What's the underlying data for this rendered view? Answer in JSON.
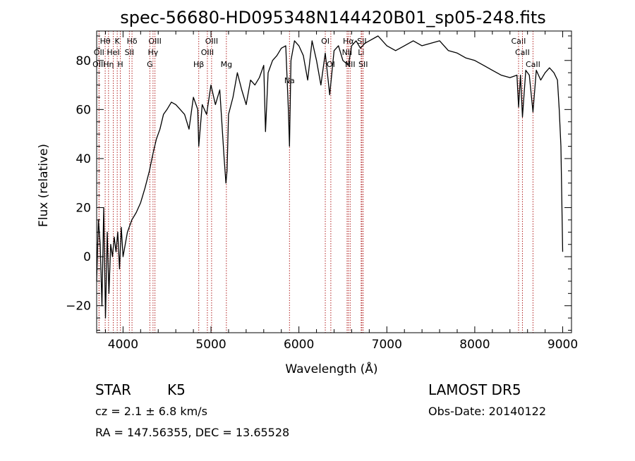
{
  "chart_data": {
    "type": "line",
    "title": "spec-56680-HD095348N144420B01_sp05-248.fits",
    "xlabel": "Wavelength (Å)",
    "ylabel": "Flux (relative)",
    "xlim": [
      3700,
      9100
    ],
    "ylim": [
      -31,
      92
    ],
    "x_ticks": [
      4000,
      5000,
      6000,
      7000,
      8000,
      9000
    ],
    "y_ticks": [
      -20,
      0,
      20,
      40,
      60,
      80
    ],
    "grid": false,
    "series": [
      {
        "color": "#000000",
        "x": [
          3700,
          3720,
          3740,
          3760,
          3780,
          3800,
          3820,
          3840,
          3860,
          3880,
          3900,
          3920,
          3940,
          3960,
          3980,
          4000,
          4050,
          4100,
          4150,
          4200,
          4250,
          4300,
          4340,
          4380,
          4420,
          4460,
          4500,
          4550,
          4600,
          4650,
          4700,
          4750,
          4800,
          4850,
          4861,
          4900,
          4950,
          5000,
          5050,
          5100,
          5150,
          5170,
          5183,
          5200,
          5250,
          5300,
          5350,
          5400,
          5450,
          5500,
          5550,
          5600,
          5620,
          5650,
          5700,
          5750,
          5800,
          5850,
          5880,
          5893,
          5910,
          5950,
          6000,
          6050,
          6100,
          6150,
          6200,
          6250,
          6300,
          6350,
          6400,
          6450,
          6500,
          6563,
          6600,
          6650,
          6700,
          6750,
          6800,
          6900,
          7000,
          7100,
          7200,
          7300,
          7400,
          7500,
          7600,
          7700,
          7800,
          7900,
          8000,
          8100,
          8200,
          8300,
          8400,
          8480,
          8498,
          8520,
          8542,
          8580,
          8620,
          8662,
          8700,
          8750,
          8800,
          8850,
          8900,
          8940,
          8960,
          8980,
          9000
        ],
        "values": [
          -10,
          15,
          5,
          -20,
          20,
          -25,
          10,
          -15,
          5,
          0,
          8,
          2,
          10,
          -5,
          12,
          0,
          10,
          15,
          18,
          22,
          28,
          35,
          42,
          48,
          52,
          58,
          60,
          63,
          62,
          60,
          58,
          52,
          65,
          60,
          45,
          62,
          58,
          70,
          62,
          68,
          40,
          30,
          35,
          58,
          65,
          75,
          68,
          62,
          72,
          70,
          73,
          78,
          51,
          75,
          80,
          82,
          85,
          86,
          60,
          45,
          80,
          88,
          86,
          82,
          72,
          88,
          80,
          70,
          83,
          66,
          84,
          86,
          80,
          78,
          86,
          88,
          85,
          87,
          88,
          90,
          86,
          84,
          86,
          88,
          86,
          87,
          88,
          84,
          83,
          81,
          80,
          78,
          76,
          74,
          73,
          74,
          61,
          74,
          57,
          76,
          74,
          59,
          76,
          72,
          75,
          77,
          75,
          72,
          60,
          45,
          2
        ]
      }
    ],
    "line_markers": [
      {
        "label": "Hθ",
        "x": 3797,
        "row": 1
      },
      {
        "label": "OII",
        "x": 3727,
        "row": 2
      },
      {
        "label": "OIII",
        "x": 3727,
        "row": 3
      },
      {
        "label": "Hη",
        "x": 3835,
        "row": 3
      },
      {
        "label": "K",
        "x": 3934,
        "row": 1
      },
      {
        "label": "HeI",
        "x": 3889,
        "row": 2
      },
      {
        "label": "H",
        "x": 3969,
        "row": 3
      },
      {
        "label": "Hδ",
        "x": 4102,
        "row": 1
      },
      {
        "label": "SII",
        "x": 4072,
        "row": 2
      },
      {
        "label": "OIII",
        "x": 4363,
        "row": 1
      },
      {
        "label": "Hγ",
        "x": 4341,
        "row": 2
      },
      {
        "label": "G",
        "x": 4305,
        "row": 3
      },
      {
        "label": "OIII",
        "x": 5007,
        "row": 1
      },
      {
        "label": "OIII",
        "x": 4959,
        "row": 2
      },
      {
        "label": "Hβ",
        "x": 4861,
        "row": 3
      },
      {
        "label": "Mg",
        "x": 5175,
        "row": 3
      },
      {
        "label": "Na",
        "x": 5893,
        "row": 4
      },
      {
        "label": "OI",
        "x": 6300,
        "row": 1
      },
      {
        "label": "OI",
        "x": 6363,
        "row": 3
      },
      {
        "label": "Hα",
        "x": 6563,
        "row": 1
      },
      {
        "label": "NII",
        "x": 6548,
        "row": 2
      },
      {
        "label": "NII",
        "x": 6583,
        "row": 3
      },
      {
        "label": "SII",
        "x": 6716,
        "row": 1
      },
      {
        "label": "Li",
        "x": 6708,
        "row": 2
      },
      {
        "label": "SII",
        "x": 6731,
        "row": 3
      },
      {
        "label": "CaII",
        "x": 8498,
        "row": 1
      },
      {
        "label": "CaII",
        "x": 8542,
        "row": 2
      },
      {
        "label": "CaII",
        "x": 8662,
        "row": 3
      }
    ],
    "marker_color": "#b22222"
  },
  "info": {
    "object_class": "STAR",
    "subclass": "K5",
    "cz": "cz = 2.1 ± 6.8 km/s",
    "radec": "RA = 147.56355, DEC =  13.65528",
    "survey": "LAMOST DR5",
    "obs_date": "Obs-Date: 20140122"
  }
}
